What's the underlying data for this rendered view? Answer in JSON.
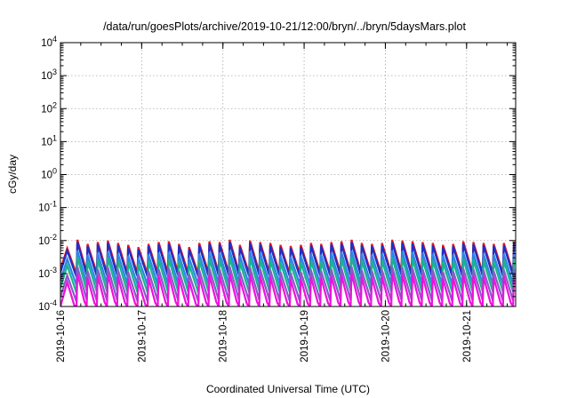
{
  "chart_data": {
    "type": "line",
    "title": "/data/run/goesPlots/archive/2019-10-21/12:00/bryn/../bryn/5daysMars.plot",
    "xlabel": "Coordinated Universal Time (UTC)",
    "ylabel": "cGy/day",
    "yscale": "log",
    "ylim": [
      0.0001,
      10000
    ],
    "xlim": [
      "2019-10-16",
      "2019-10-21T14:30"
    ],
    "grid": true,
    "xticks": [
      "2019-10-16",
      "2019-10-17",
      "2019-10-18",
      "2019-10-19",
      "2019-10-20",
      "2019-10-21"
    ],
    "yticks": [
      {
        "base": "10",
        "exp": "-4"
      },
      {
        "base": "10",
        "exp": "-3"
      },
      {
        "base": "10",
        "exp": "-2"
      },
      {
        "base": "10",
        "exp": "-1"
      },
      {
        "base": "10",
        "exp": "0"
      },
      {
        "base": "10",
        "exp": "1"
      },
      {
        "base": "10",
        "exp": "2"
      },
      {
        "base": "10",
        "exp": "3"
      },
      {
        "base": "10",
        "exp": "4"
      }
    ],
    "sawtooth_period_hours": 3,
    "cycle_peak_dates": [
      "2019-10-16T02:00",
      "2019-10-16T05:00",
      "2019-10-16T08:00",
      "2019-10-16T11:00",
      "2019-10-16T14:00",
      "2019-10-16T17:00",
      "2019-10-16T20:00",
      "2019-10-16T23:00",
      "2019-10-17T02:00",
      "2019-10-17T05:00",
      "2019-10-17T08:00",
      "2019-10-17T11:00",
      "2019-10-17T14:00",
      "2019-10-17T17:00",
      "2019-10-17T20:00",
      "2019-10-17T23:00",
      "2019-10-18T02:00",
      "2019-10-18T05:00",
      "2019-10-18T08:00",
      "2019-10-18T11:00",
      "2019-10-18T14:00",
      "2019-10-18T17:00",
      "2019-10-18T20:00",
      "2019-10-18T23:00",
      "2019-10-19T02:00",
      "2019-10-19T05:00",
      "2019-10-19T08:00",
      "2019-10-19T11:00",
      "2019-10-19T14:00",
      "2019-10-19T17:00",
      "2019-10-19T20:00",
      "2019-10-19T23:00",
      "2019-10-20T02:00",
      "2019-10-20T05:00",
      "2019-10-20T08:00",
      "2019-10-20T11:00",
      "2019-10-20T14:00",
      "2019-10-20T17:00",
      "2019-10-20T20:00",
      "2019-10-20T23:00",
      "2019-10-21T02:00",
      "2019-10-21T05:00",
      "2019-10-21T08:00",
      "2019-10-21T11:00",
      "2019-10-21T14:00"
    ],
    "cycle_peak_factor": [
      0.55,
      1.0,
      0.75,
      0.85,
      0.95,
      0.8,
      0.7,
      0.6,
      0.75,
      0.85,
      0.9,
      0.75,
      0.6,
      0.8,
      0.9,
      0.85,
      1.0,
      0.7,
      0.95,
      0.85,
      0.8,
      0.7,
      0.65,
      0.7,
      0.8,
      0.75,
      0.85,
      0.9,
      1.0,
      0.8,
      0.75,
      0.8,
      1.0,
      0.95,
      0.9,
      0.85,
      0.8,
      0.7,
      0.75,
      0.9,
      0.85,
      0.8,
      0.75,
      0.8,
      0.85
    ],
    "series": [
      {
        "color": "#e8171f",
        "peak": 0.0105,
        "trough": 0.0011
      },
      {
        "color": "#1f2fc4",
        "peak": 0.009,
        "trough": 0.0009
      },
      {
        "color": "#2d86e8",
        "peak": 0.005,
        "trough": 0.0005
      },
      {
        "color": "#18b48c",
        "peak": 0.0032,
        "trough": 0.0003
      },
      {
        "color": "#8a5ac8",
        "peak": 0.0016,
        "trough": 0.00016
      },
      {
        "color": "#ee12dc",
        "peak": 0.001,
        "trough": 7.5e-05
      }
    ]
  }
}
